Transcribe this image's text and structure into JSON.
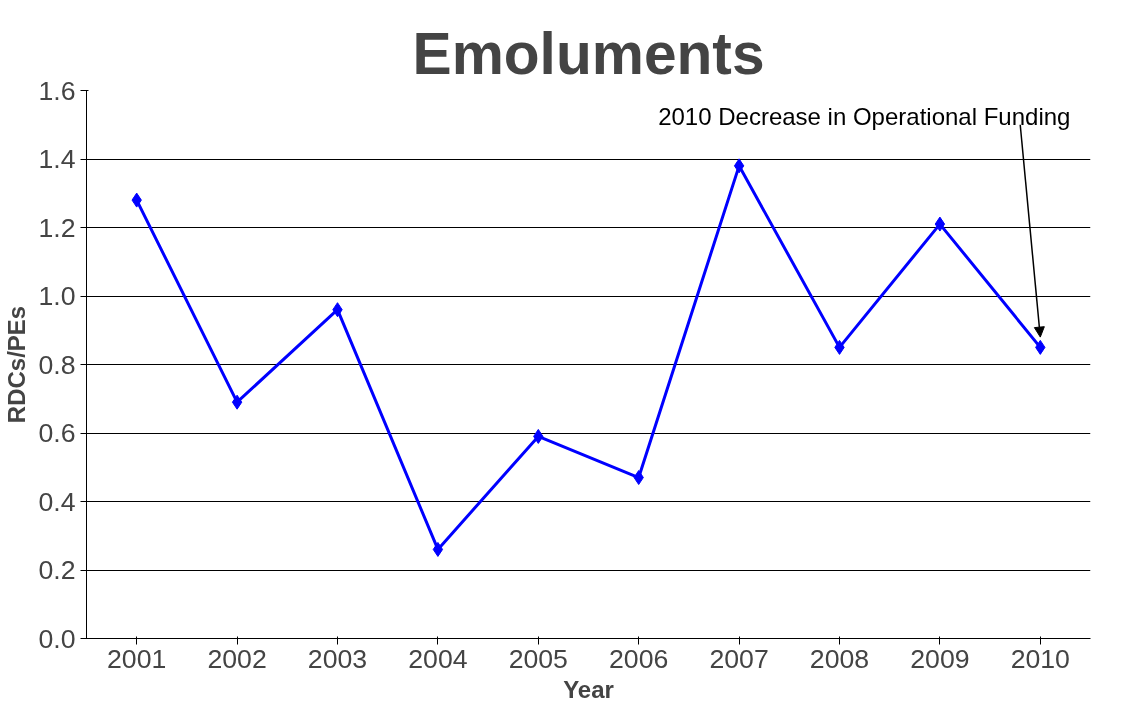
{
  "chart_data": {
    "type": "line",
    "title": "Emoluments",
    "xlabel": "Year",
    "ylabel": "RDCs/PEs",
    "categories": [
      "2001",
      "2002",
      "2003",
      "2004",
      "2005",
      "2006",
      "2007",
      "2008",
      "2009",
      "2010"
    ],
    "series": [
      {
        "color": "#0000ff",
        "values": [
          1.28,
          0.69,
          0.96,
          0.26,
          0.59,
          0.47,
          1.38,
          0.85,
          1.21,
          0.85
        ]
      }
    ],
    "ylim": [
      0,
      1.6
    ],
    "yticks": [
      {
        "value": 0,
        "label": "0.0"
      },
      {
        "value": 0.2,
        "label": "0.2"
      },
      {
        "value": 0.4,
        "label": "0.4"
      },
      {
        "value": 0.6,
        "label": "0.6"
      },
      {
        "value": 0.8,
        "label": "0.8"
      },
      {
        "value": 1,
        "label": "1.0"
      },
      {
        "value": 1.2,
        "label": "1.2"
      },
      {
        "value": 1.4,
        "label": "1.4"
      },
      {
        "value": 1.6,
        "label": "1.6"
      }
    ],
    "grid": "y",
    "legend": false,
    "marker": "diamond",
    "line_style": "solid",
    "annotations": [
      {
        "text": "2010 Decrease in Operational Funding",
        "x": "2010",
        "y": 0.88
      }
    ]
  }
}
